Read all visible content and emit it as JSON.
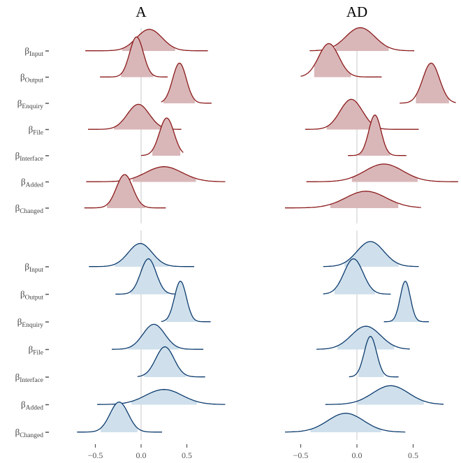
{
  "colors": {
    "red_line": "#8b1a1a",
    "red_fill": "#d9b7b9",
    "blue_line": "#0c3b6e",
    "blue_fill": "#cfe0ec",
    "zero_line": "#dddddd",
    "tick": "#555555"
  },
  "chart_data": {
    "type": "area",
    "description_kind": "ridgeline density (posterior distributions)",
    "columns": [
      "A",
      "AD"
    ],
    "parameters": [
      {
        "symbol": "β",
        "sub": "Input"
      },
      {
        "symbol": "β",
        "sub": "Output"
      },
      {
        "symbol": "β",
        "sub": "Enquiry"
      },
      {
        "symbol": "β",
        "sub": "File"
      },
      {
        "symbol": "β",
        "sub": "Interface"
      },
      {
        "symbol": "β",
        "sub": "Added"
      },
      {
        "symbol": "β",
        "sub": "Changed"
      }
    ],
    "x_ticks": [
      -0.5,
      0.0,
      0.5
    ],
    "x_tick_labels": [
      "−0.5",
      "0.0",
      "0.5"
    ],
    "grid": false,
    "vline_at": 0,
    "groups": [
      {
        "color": "red",
        "panels": {
          "A": [
            {
              "mean": 0.09,
              "sd": 0.14,
              "min": -0.61,
              "max": 0.73,
              "ci": [
                -0.22,
                0.38
              ]
            },
            {
              "mean": -0.05,
              "sd": 0.075,
              "min": -0.45,
              "max": 0.29,
              "ci": [
                -0.22,
                0.14
              ]
            },
            {
              "mean": 0.42,
              "sd": 0.075,
              "min": 0.22,
              "max": 0.77,
              "ci": [
                0.24,
                0.59
              ]
            },
            {
              "mean": -0.03,
              "sd": 0.12,
              "min": -0.58,
              "max": 0.44,
              "ci": [
                -0.3,
                0.25
              ]
            },
            {
              "mean": 0.28,
              "sd": 0.08,
              "min": 0.0,
              "max": 0.46,
              "ci": [
                0.12,
                0.43
              ]
            },
            {
              "mean": 0.25,
              "sd": 0.2,
              "min": -0.6,
              "max": 0.92,
              "ci": [
                -0.1,
                0.6
              ]
            },
            {
              "mean": -0.18,
              "sd": 0.09,
              "min": -0.62,
              "max": 0.27,
              "ci": [
                -0.38,
                0.05
              ]
            }
          ],
          "AD": [
            {
              "mean": 0.03,
              "sd": 0.13,
              "min": -0.42,
              "max": 0.51,
              "ci": [
                -0.2,
                0.29
              ]
            },
            {
              "mean": -0.25,
              "sd": 0.09,
              "min": -0.5,
              "max": 0.22,
              "ci": [
                -0.38,
                -0.05
              ]
            },
            {
              "mean": 0.66,
              "sd": 0.075,
              "min": 0.38,
              "max": 0.88,
              "ci": [
                0.52,
                0.82
              ]
            },
            {
              "mean": -0.05,
              "sd": 0.1,
              "min": -0.46,
              "max": 0.55,
              "ci": [
                -0.28,
                0.2
              ]
            },
            {
              "mean": 0.16,
              "sd": 0.055,
              "min": -0.08,
              "max": 0.44,
              "ci": [
                0.01,
                0.3
              ]
            },
            {
              "mean": 0.24,
              "sd": 0.17,
              "min": -0.45,
              "max": 0.9,
              "ci": [
                -0.05,
                0.55
              ]
            },
            {
              "mean": 0.08,
              "sd": 0.18,
              "min": -0.64,
              "max": 0.57,
              "ci": [
                -0.25,
                0.38
              ]
            }
          ]
        }
      },
      {
        "color": "blue",
        "panels": {
          "A": [
            {
              "mean": -0.01,
              "sd": 0.13,
              "min": -0.57,
              "max": 0.58,
              "ci": [
                -0.3,
                0.31
              ]
            },
            {
              "mean": 0.08,
              "sd": 0.085,
              "min": -0.28,
              "max": 0.49,
              "ci": [
                -0.12,
                0.3
              ]
            },
            {
              "mean": 0.43,
              "sd": 0.065,
              "min": 0.22,
              "max": 0.76,
              "ci": [
                0.27,
                0.6
              ]
            },
            {
              "mean": 0.14,
              "sd": 0.12,
              "min": -0.32,
              "max": 0.68,
              "ci": [
                -0.15,
                0.42
              ]
            },
            {
              "mean": 0.26,
              "sd": 0.1,
              "min": -0.04,
              "max": 0.7,
              "ci": [
                0.03,
                0.5
              ]
            },
            {
              "mean": 0.25,
              "sd": 0.2,
              "min": -0.48,
              "max": 0.92,
              "ci": [
                -0.12,
                0.62
              ]
            },
            {
              "mean": -0.24,
              "sd": 0.1,
              "min": -0.7,
              "max": 0.23,
              "ci": [
                -0.45,
                -0.03
              ]
            }
          ],
          "AD": [
            {
              "mean": 0.12,
              "sd": 0.12,
              "min": -0.3,
              "max": 0.55,
              "ci": [
                -0.12,
                0.38
              ]
            },
            {
              "mean": -0.03,
              "sd": 0.085,
              "min": -0.3,
              "max": 0.3,
              "ci": [
                -0.2,
                0.16
              ]
            },
            {
              "mean": 0.43,
              "sd": 0.045,
              "min": 0.24,
              "max": 0.64,
              "ci": [
                0.3,
                0.57
              ]
            },
            {
              "mean": 0.08,
              "sd": 0.13,
              "min": -0.36,
              "max": 0.47,
              "ci": [
                -0.18,
                0.34
              ]
            },
            {
              "mean": 0.12,
              "sd": 0.055,
              "min": -0.07,
              "max": 0.37,
              "ci": [
                0.01,
                0.24
              ]
            },
            {
              "mean": 0.3,
              "sd": 0.16,
              "min": -0.28,
              "max": 0.77,
              "ci": [
                0.0,
                0.6
              ]
            },
            {
              "mean": -0.1,
              "sd": 0.16,
              "min": -0.64,
              "max": 0.43,
              "ci": [
                -0.42,
                0.22
              ]
            }
          ]
        }
      }
    ]
  }
}
